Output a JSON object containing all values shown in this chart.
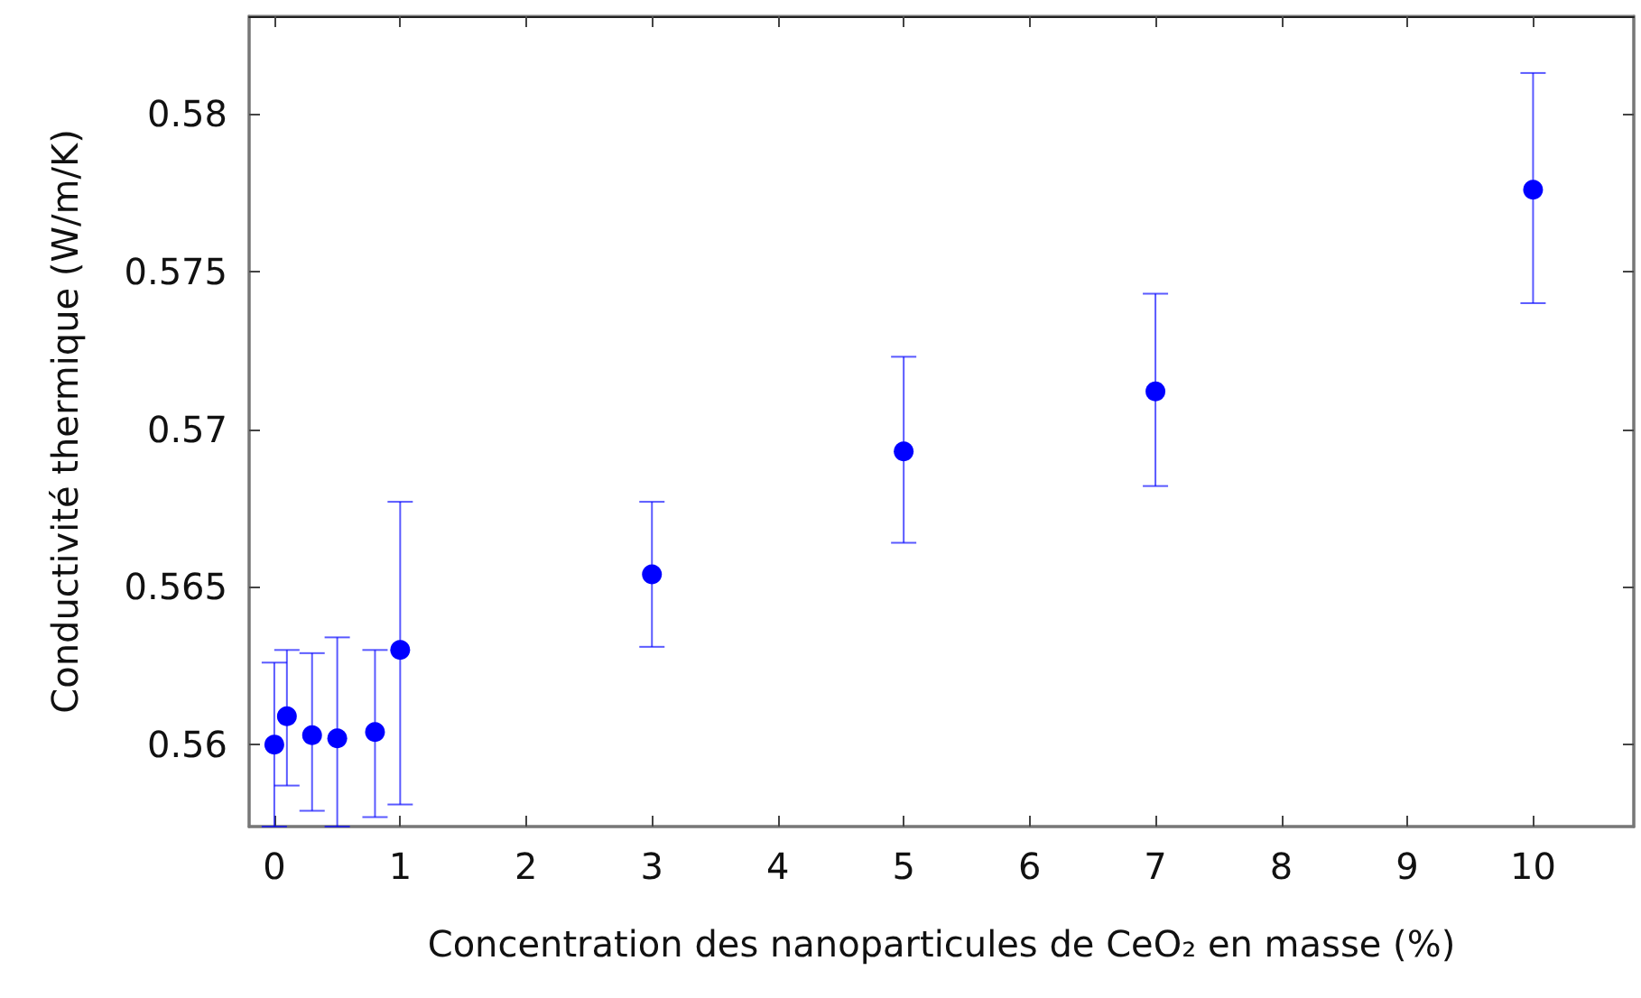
{
  "chart_data": {
    "type": "scatter",
    "xlabel": "Concentration des nanoparticules de CeO₂ en masse (%)",
    "ylabel": "Conductivité thermique (W/m/K)",
    "x": [
      0,
      0.1,
      0.3,
      0.5,
      0.8,
      1,
      3,
      5,
      7,
      10
    ],
    "series": [
      {
        "color": "#0000ff",
        "values": [
          0.56,
          0.5609,
          0.5603,
          0.5602,
          0.5604,
          0.563,
          0.5654,
          0.5693,
          0.5712,
          0.5776
        ],
        "errors": [
          [
            0.5574,
            0.5626
          ],
          [
            0.5587,
            0.563
          ],
          [
            0.5579,
            0.5629
          ],
          [
            0.5574,
            0.5634
          ],
          [
            0.5577,
            0.563
          ],
          [
            0.5581,
            0.5677
          ],
          [
            0.5631,
            0.5677
          ],
          [
            0.5664,
            0.5723
          ],
          [
            0.5682,
            0.5743
          ],
          [
            0.574,
            0.5813
          ]
        ]
      }
    ],
    "xlim": [
      -0.2,
      10.8
    ],
    "ylim": [
      0.5574,
      0.5831
    ],
    "xticks": [
      0,
      1,
      2,
      3,
      4,
      5,
      6,
      7,
      8,
      9,
      10
    ],
    "yticks": [
      0.56,
      0.565,
      0.57,
      0.575,
      0.58
    ],
    "marker": "circle"
  }
}
